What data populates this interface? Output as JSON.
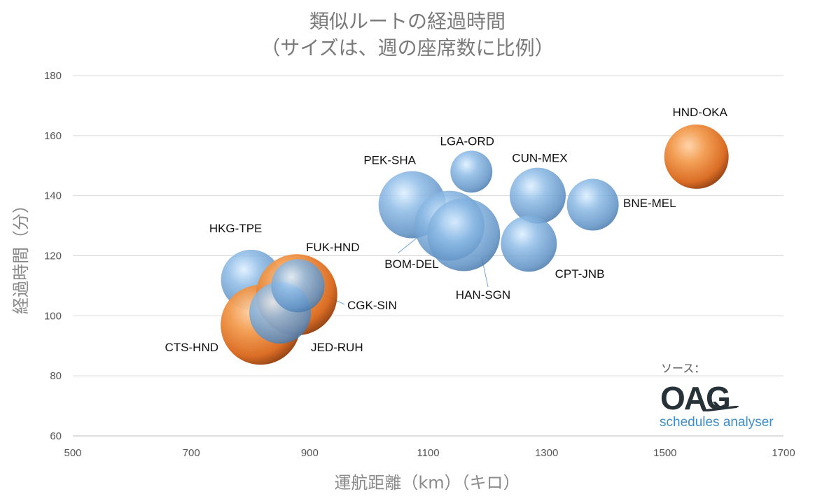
{
  "chart_data": {
    "type": "bubble",
    "title": "類似ルートの経過時間",
    "subtitle": "（サイズは、週の座席数に比例）",
    "xlabel": "運航距離（km）（キロ）",
    "ylabel": "経過時間（分）",
    "xlim": [
      500,
      1700
    ],
    "ylim": [
      60,
      180
    ],
    "xticks": [
      "500",
      "700",
      "900",
      "1100",
      "1300",
      "1500",
      "1700"
    ],
    "yticks": [
      "60",
      "80",
      "100",
      "120",
      "140",
      "160",
      "180"
    ],
    "grid": "horizontal",
    "colors": {
      "orange": "#e9761f",
      "blue": "#6fa8dc"
    },
    "points": [
      {
        "label": "HKG-TPE",
        "x": 801,
        "y": 112,
        "r": 43,
        "color": "blue"
      },
      {
        "label": "CTS-HND",
        "x": 817,
        "y": 97,
        "r": 57,
        "color": "orange"
      },
      {
        "label": "FUK-HND",
        "x": 878,
        "y": 107,
        "r": 58,
        "color": "orange"
      },
      {
        "label": "JED-RUH",
        "x": 850,
        "y": 101,
        "r": 44,
        "color": "blue"
      },
      {
        "label": "CGK-SIN",
        "x": 880,
        "y": 110,
        "r": 38,
        "color": "blue"
      },
      {
        "label": "PEK-SHA",
        "x": 1073,
        "y": 137,
        "r": 48,
        "color": "blue"
      },
      {
        "label": "BOM-DEL",
        "x": 1136,
        "y": 130,
        "r": 50,
        "color": "blue"
      },
      {
        "label": "HAN-SGN",
        "x": 1160,
        "y": 127,
        "r": 52,
        "color": "blue"
      },
      {
        "label": "LGA-ORD",
        "x": 1173,
        "y": 148,
        "r": 30,
        "color": "blue"
      },
      {
        "label": "CUN-MEX",
        "x": 1285,
        "y": 140,
        "r": 40,
        "color": "blue"
      },
      {
        "label": "CPT-JNB",
        "x": 1270,
        "y": 124,
        "r": 40,
        "color": "blue"
      },
      {
        "label": "BNE-MEL",
        "x": 1378,
        "y": 137,
        "r": 37,
        "color": "blue"
      },
      {
        "label": "HND-OKA",
        "x": 1553,
        "y": 153,
        "r": 46,
        "color": "orange"
      }
    ]
  },
  "source": {
    "label": "ソース：",
    "logo": "OAG",
    "logo_sub": "schedules analyser"
  }
}
